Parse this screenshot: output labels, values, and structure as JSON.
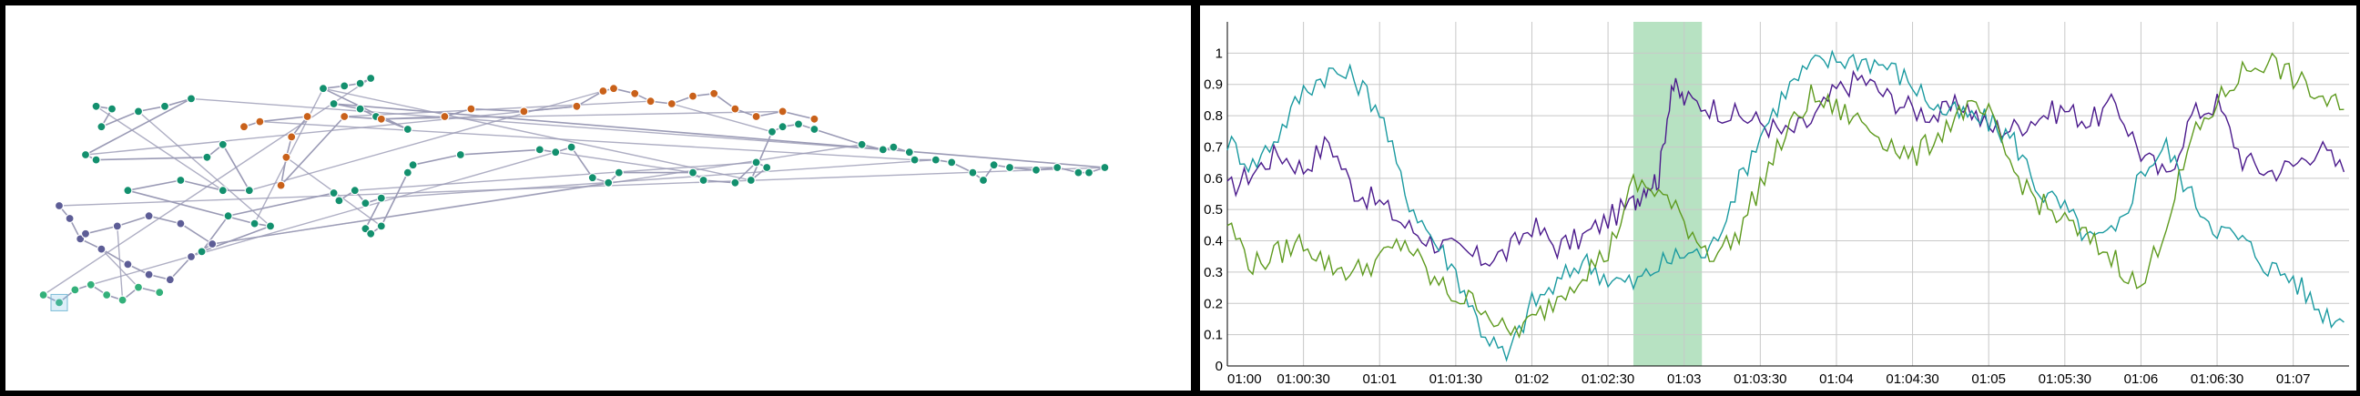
{
  "colors": {
    "edge": "#9a9ab5",
    "cluster_teal": "#13906e",
    "cluster_orange": "#c9611a",
    "cluster_purple": "#5d5d96",
    "cluster_light": "#33b07a",
    "series_purple": "#4b1a8c",
    "series_teal": "#1a9aa0",
    "series_green": "#5e9a1e",
    "highlight": "#b7e2c2",
    "grid": "#c8c8c8"
  },
  "chart_data": [
    {
      "type": "scatter",
      "title": "",
      "description_kind": "node-link graph (projection)",
      "clusters": [
        {
          "name": "",
          "color": "#13906e",
          "points": [
            [
              0.12,
              0.36
            ],
            [
              0.15,
              0.37
            ],
            [
              0.13,
              0.44
            ],
            [
              0.2,
              0.38
            ],
            [
              0.25,
              0.36
            ],
            [
              0.3,
              0.33
            ],
            [
              0.1,
              0.55
            ],
            [
              0.12,
              0.57
            ],
            [
              0.33,
              0.56
            ],
            [
              0.36,
              0.51
            ],
            [
              0.41,
              0.69
            ],
            [
              0.36,
              0.69
            ],
            [
              0.28,
              0.65
            ],
            [
              0.18,
              0.69
            ],
            [
              0.42,
              0.82
            ],
            [
              0.45,
              0.83
            ],
            [
              0.32,
              0.93
            ],
            [
              0.37,
              0.79
            ],
            [
              0.57,
              0.7
            ],
            [
              0.58,
              0.73
            ],
            [
              0.61,
              0.69
            ],
            [
              0.63,
              0.74
            ],
            [
              0.66,
              0.72
            ],
            [
              0.63,
              0.84
            ],
            [
              0.64,
              0.86
            ],
            [
              0.66,
              0.83
            ],
            [
              0.71,
              0.62
            ],
            [
              0.72,
              0.59
            ],
            [
              0.81,
              0.55
            ],
            [
              0.96,
              0.53
            ],
            [
              0.99,
              0.54
            ],
            [
              1.02,
              0.52
            ],
            [
              1.06,
              0.64
            ],
            [
              1.09,
              0.66
            ],
            [
              1.11,
              0.62
            ],
            [
              1.25,
              0.62
            ],
            [
              1.27,
              0.65
            ],
            [
              1.33,
              0.66
            ],
            [
              1.37,
              0.58
            ],
            [
              1.39,
              0.6
            ],
            [
              1.36,
              0.65
            ],
            [
              1.4,
              0.46
            ],
            [
              1.42,
              0.44
            ],
            [
              1.45,
              0.43
            ],
            [
              1.48,
              0.45
            ],
            [
              1.57,
              0.51
            ],
            [
              1.61,
              0.53
            ],
            [
              1.63,
              0.52
            ],
            [
              1.66,
              0.54
            ],
            [
              1.67,
              0.57
            ],
            [
              1.71,
              0.57
            ],
            [
              1.74,
              0.58
            ],
            [
              1.78,
              0.62
            ],
            [
              1.8,
              0.65
            ],
            [
              1.82,
              0.59
            ],
            [
              1.85,
              0.6
            ],
            [
              1.9,
              0.61
            ],
            [
              1.94,
              0.6
            ],
            [
              1.98,
              0.62
            ],
            [
              2.0,
              0.62
            ],
            [
              2.03,
              0.6
            ],
            [
              0.57,
              0.35
            ],
            [
              0.62,
              0.37
            ],
            [
              0.65,
              0.4
            ],
            [
              0.71,
              0.45
            ],
            [
              0.55,
              0.29
            ],
            [
              0.59,
              0.28
            ],
            [
              0.62,
              0.27
            ],
            [
              0.64,
              0.25
            ]
          ]
        },
        {
          "name": "",
          "color": "#c9611a",
          "points": [
            [
              0.4,
              0.44
            ],
            [
              0.43,
              0.42
            ],
            [
              0.52,
              0.4
            ],
            [
              0.49,
              0.48
            ],
            [
              0.48,
              0.56
            ],
            [
              0.47,
              0.67
            ],
            [
              0.59,
              0.4
            ],
            [
              0.66,
              0.41
            ],
            [
              0.78,
              0.4
            ],
            [
              0.83,
              0.37
            ],
            [
              0.93,
              0.38
            ],
            [
              1.03,
              0.36
            ],
            [
              1.08,
              0.3
            ],
            [
              1.1,
              0.29
            ],
            [
              1.14,
              0.31
            ],
            [
              1.17,
              0.34
            ],
            [
              1.21,
              0.35
            ],
            [
              1.25,
              0.32
            ],
            [
              1.29,
              0.31
            ],
            [
              1.33,
              0.37
            ],
            [
              1.37,
              0.4
            ],
            [
              1.42,
              0.38
            ],
            [
              1.48,
              0.41
            ]
          ]
        },
        {
          "name": "",
          "color": "#5d5d96",
          "points": [
            [
              0.05,
              0.75
            ],
            [
              0.07,
              0.8
            ],
            [
              0.09,
              0.88
            ],
            [
              0.13,
              0.92
            ],
            [
              0.18,
              0.98
            ],
            [
              0.22,
              1.02
            ],
            [
              0.26,
              1.04
            ],
            [
              0.3,
              0.95
            ],
            [
              0.34,
              0.9
            ],
            [
              0.28,
              0.82
            ],
            [
              0.22,
              0.79
            ],
            [
              0.16,
              0.83
            ],
            [
              0.1,
              0.86
            ]
          ]
        },
        {
          "name": "",
          "color": "#33b07a",
          "points": [
            [
              0.02,
              1.1
            ],
            [
              0.05,
              1.13
            ],
            [
              0.08,
              1.08
            ],
            [
              0.11,
              1.06
            ],
            [
              0.14,
              1.1
            ],
            [
              0.17,
              1.12
            ],
            [
              0.2,
              1.07
            ],
            [
              0.24,
              1.09
            ]
          ]
        }
      ],
      "selection_box": true
    },
    {
      "type": "line",
      "title": "",
      "xlabel": "",
      "ylabel": "",
      "x_ticks": [
        "01:00",
        "01:00:30",
        "01:01",
        "01:01:30",
        "01:02",
        "01:02:30",
        "01:03",
        "01:03:30",
        "01:04",
        "01:04:30",
        "01:05",
        "01:05:30",
        "01:06",
        "01:06:30",
        "01:07"
      ],
      "y_ticks": [
        "0",
        "0.1",
        "0.2",
        "0.3",
        "0.4",
        "0.5",
        "0.6",
        "0.7",
        "0.8",
        "0.9",
        "1"
      ],
      "xlim_seconds": [
        0,
        442
      ],
      "ylim": [
        0,
        1.1
      ],
      "grid": true,
      "highlight_range": [
        "01:02:40",
        "01:03:07"
      ],
      "series": [
        {
          "name": "",
          "color": "#4b1a8c",
          "x": [
            0,
            10,
            20,
            30,
            40,
            50,
            60,
            70,
            80,
            90,
            100,
            110,
            120,
            130,
            140,
            150,
            160,
            165,
            170,
            175,
            180,
            190,
            200,
            210,
            220,
            230,
            240,
            250,
            260,
            270,
            280,
            290,
            300,
            310,
            320,
            330,
            340,
            350,
            360,
            370,
            380,
            390,
            400,
            410,
            420,
            430,
            440
          ],
          "y": [
            0.56,
            0.62,
            0.68,
            0.63,
            0.72,
            0.56,
            0.52,
            0.45,
            0.4,
            0.37,
            0.34,
            0.36,
            0.45,
            0.38,
            0.41,
            0.47,
            0.52,
            0.58,
            0.6,
            0.9,
            0.85,
            0.83,
            0.8,
            0.78,
            0.74,
            0.78,
            0.88,
            0.92,
            0.86,
            0.82,
            0.8,
            0.84,
            0.76,
            0.76,
            0.8,
            0.82,
            0.78,
            0.84,
            0.68,
            0.6,
            0.8,
            0.84,
            0.66,
            0.62,
            0.64,
            0.7,
            0.62
          ]
        },
        {
          "name": "",
          "color": "#1a9aa0",
          "x": [
            0,
            10,
            20,
            30,
            40,
            50,
            60,
            70,
            80,
            90,
            100,
            110,
            120,
            130,
            140,
            150,
            160,
            170,
            180,
            190,
            200,
            210,
            220,
            230,
            240,
            250,
            260,
            270,
            280,
            290,
            300,
            310,
            320,
            330,
            340,
            350,
            360,
            370,
            380,
            390,
            400,
            410,
            420,
            430,
            440
          ],
          "y": [
            0.72,
            0.64,
            0.74,
            0.88,
            0.94,
            0.92,
            0.82,
            0.55,
            0.42,
            0.3,
            0.12,
            0.02,
            0.2,
            0.26,
            0.34,
            0.28,
            0.26,
            0.32,
            0.36,
            0.36,
            0.56,
            0.74,
            0.88,
            0.96,
            0.98,
            0.98,
            0.96,
            0.9,
            0.82,
            0.8,
            0.78,
            0.72,
            0.56,
            0.5,
            0.4,
            0.42,
            0.62,
            0.7,
            0.54,
            0.44,
            0.4,
            0.32,
            0.28,
            0.18,
            0.14
          ]
        },
        {
          "name": "",
          "color": "#5e9a1e",
          "x": [
            0,
            10,
            20,
            30,
            40,
            50,
            60,
            70,
            80,
            90,
            100,
            110,
            120,
            130,
            140,
            150,
            160,
            170,
            180,
            190,
            200,
            210,
            220,
            230,
            240,
            250,
            260,
            270,
            280,
            290,
            300,
            310,
            320,
            330,
            340,
            350,
            360,
            370,
            380,
            390,
            400,
            410,
            420,
            430,
            440
          ],
          "y": [
            0.46,
            0.32,
            0.36,
            0.4,
            0.32,
            0.3,
            0.34,
            0.4,
            0.28,
            0.22,
            0.2,
            0.1,
            0.14,
            0.22,
            0.3,
            0.36,
            0.58,
            0.56,
            0.46,
            0.36,
            0.4,
            0.58,
            0.74,
            0.86,
            0.82,
            0.78,
            0.72,
            0.66,
            0.74,
            0.82,
            0.8,
            0.62,
            0.52,
            0.46,
            0.4,
            0.34,
            0.24,
            0.46,
            0.72,
            0.84,
            0.94,
            0.98,
            0.92,
            0.86,
            0.82
          ]
        }
      ]
    }
  ]
}
